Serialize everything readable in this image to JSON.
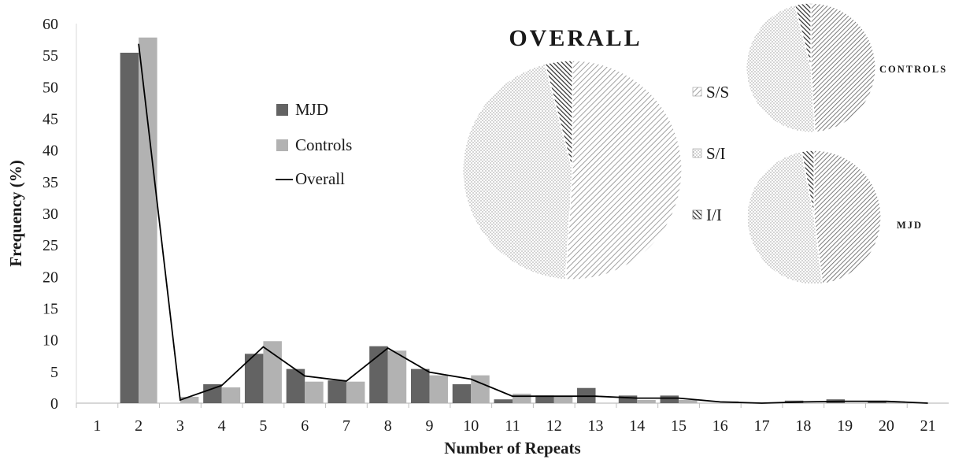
{
  "chart_data": [
    {
      "type": "bar",
      "xlabel": "Number of Repeats",
      "ylabel": "Frequency (%)",
      "ylim": [
        0,
        60
      ],
      "yticks": [
        0,
        5,
        10,
        15,
        20,
        25,
        30,
        35,
        40,
        45,
        50,
        55,
        60
      ],
      "categories": [
        "1",
        "2",
        "3",
        "4",
        "5",
        "6",
        "7",
        "8",
        "9",
        "10",
        "11",
        "12",
        "13",
        "14",
        "15",
        "16",
        "17",
        "18",
        "19",
        "20",
        "21"
      ],
      "series": [
        {
          "name": "MJD",
          "color": "#636363",
          "values": [
            0,
            55.4,
            0,
            3.0,
            7.8,
            5.4,
            3.6,
            9.0,
            5.4,
            3.0,
            0.6,
            1.2,
            2.4,
            1.2,
            1.2,
            0,
            0,
            0.4,
            0.6,
            0.2,
            0
          ]
        },
        {
          "name": "Controls",
          "color": "#b2b2b2",
          "values": [
            0,
            57.8,
            1.0,
            2.5,
            9.8,
            3.4,
            3.4,
            8.3,
            4.4,
            4.4,
            1.5,
            1.0,
            0,
            0.5,
            0.5,
            0.3,
            0,
            0,
            0,
            0.3,
            0
          ]
        },
        {
          "name": "Overall",
          "type": "line",
          "color": "#000000",
          "values": [
            null,
            56.8,
            0.5,
            2.8,
            8.9,
            4.3,
            3.5,
            8.7,
            4.9,
            3.8,
            1.1,
            1.1,
            1.1,
            0.8,
            0.8,
            0.2,
            0,
            0.2,
            0.3,
            0.3,
            0
          ]
        }
      ],
      "legend": [
        "MJD",
        "Controls",
        "Overall"
      ],
      "legend_position": "upper-left-center",
      "grid": false
    },
    {
      "type": "pie",
      "title": "OVERALL",
      "labels": [
        "S/S",
        "S/I",
        "I/I"
      ],
      "values": [
        51,
        45,
        4
      ]
    },
    {
      "type": "pie",
      "title": "CONTROLS",
      "labels": [
        "S/S",
        "S/I",
        "I/I"
      ],
      "values": [
        49,
        47,
        4
      ]
    },
    {
      "type": "pie",
      "title": "MJD",
      "labels": [
        "S/S",
        "S/I",
        "I/I"
      ],
      "values": [
        48,
        49,
        3
      ]
    }
  ],
  "pie_legend": [
    "S/S",
    "S/I",
    "I/I"
  ],
  "colors": {
    "mjd": "#636363",
    "controls": "#b2b2b2",
    "overall_line": "#000000",
    "ss_hatch": "#7a7a7a",
    "si_dots": "#8c8c8c",
    "ii_hatch": "#333333"
  }
}
